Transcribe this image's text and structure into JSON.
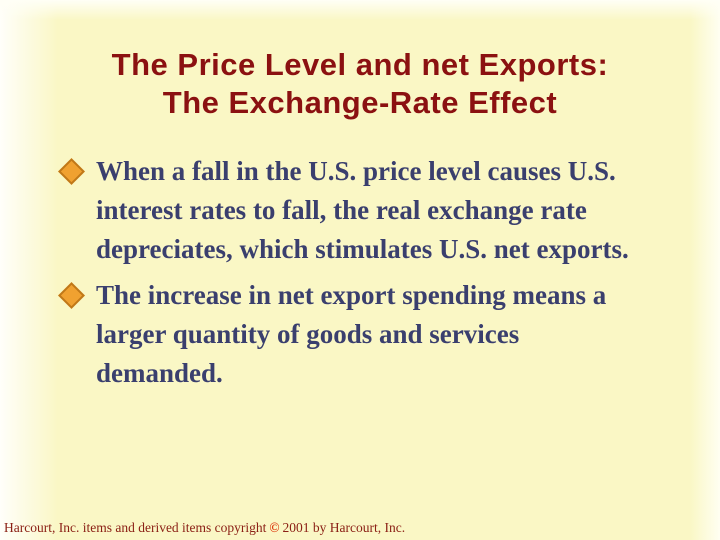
{
  "slide": {
    "title_lines": [
      "The Price Level and net Exports:",
      "The Exchange-Rate Effect"
    ],
    "bullets": [
      {
        "text": "When a fall in the U.S. price level causes U.S. interest rates to fall, the real exchange rate depreciates, which stimulates U.S. net exports."
      },
      {
        "text": "The increase in net export spending means a larger quantity of goods and services demanded."
      }
    ],
    "footer": {
      "pre": "Harcourt, Inc. items and derived items copyright",
      "symbol": "©",
      "post": "2001 by Harcourt, Inc."
    },
    "icons": {
      "bullet": "diamond-bullet-icon"
    },
    "colors": {
      "title_text": "#8b1111",
      "body_text": "#3a3f6e",
      "bullet_fill": "#f0a130",
      "bullet_border": "#c07818",
      "footer_text": "#8b2015",
      "copyright_symbol": "#dd3a0e",
      "background": "#faf7c5"
    }
  }
}
